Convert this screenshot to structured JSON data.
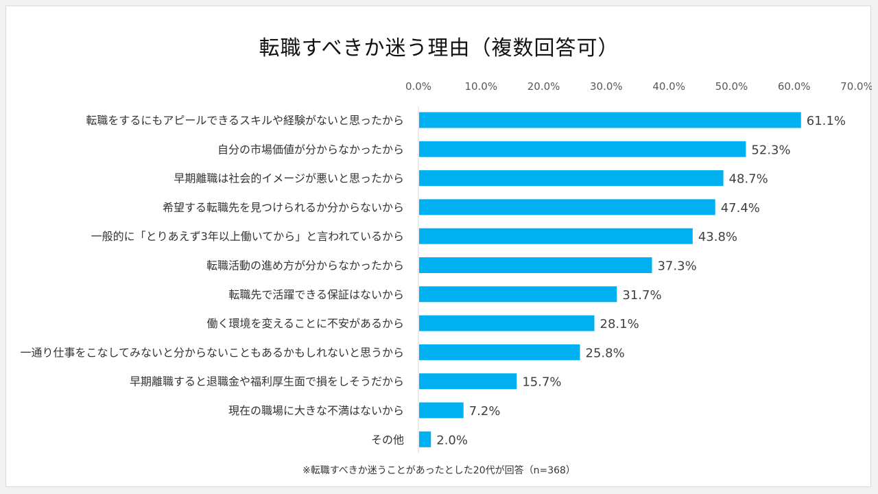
{
  "chart_data": {
    "type": "bar",
    "orientation": "horizontal",
    "title": "転職すべきか迷う理由（複数回答可）",
    "footnote": "※転職すべきか迷うことがあったとした20代が回答（n=368）",
    "xlim": [
      0,
      70
    ],
    "xticks": [
      0,
      10,
      20,
      30,
      40,
      50,
      60,
      70
    ],
    "xtick_labels": [
      "0.0%",
      "10.0%",
      "20.0%",
      "30.0%",
      "40.0%",
      "50.0%",
      "60.0%",
      "70.0%"
    ],
    "axis_position": "top",
    "grid": false,
    "bar_color": "#00b0f0",
    "categories": [
      "転職をするにもアピールできるスキルや経験がないと思ったから",
      "自分の市場価値が分からなかったから",
      "早期離職は社会的イメージが悪いと思ったから",
      "希望する転職先を見つけられるか分からないから",
      "一般的に「とりあえず3年以上働いてから」と言われているから",
      "転職活動の進め方が分からなかったから",
      "転職先で活躍できる保証はないから",
      "働く環境を変えることに不安があるから",
      "一通り仕事をこなしてみないと分からないこともあるかもしれないと思うから",
      "早期離職すると退職金や福利厚生面で損をしそうだから",
      "現在の職場に大きな不満はないから",
      "その他"
    ],
    "values": [
      61.1,
      52.3,
      48.7,
      47.4,
      43.8,
      37.3,
      31.7,
      28.1,
      25.8,
      15.7,
      7.2,
      2.0
    ],
    "data_labels": [
      "61.1%",
      "52.3%",
      "48.7%",
      "47.4%",
      "43.8%",
      "37.3%",
      "31.7%",
      "28.1%",
      "25.8%",
      "15.7%",
      "7.2%",
      "2.0%"
    ]
  }
}
